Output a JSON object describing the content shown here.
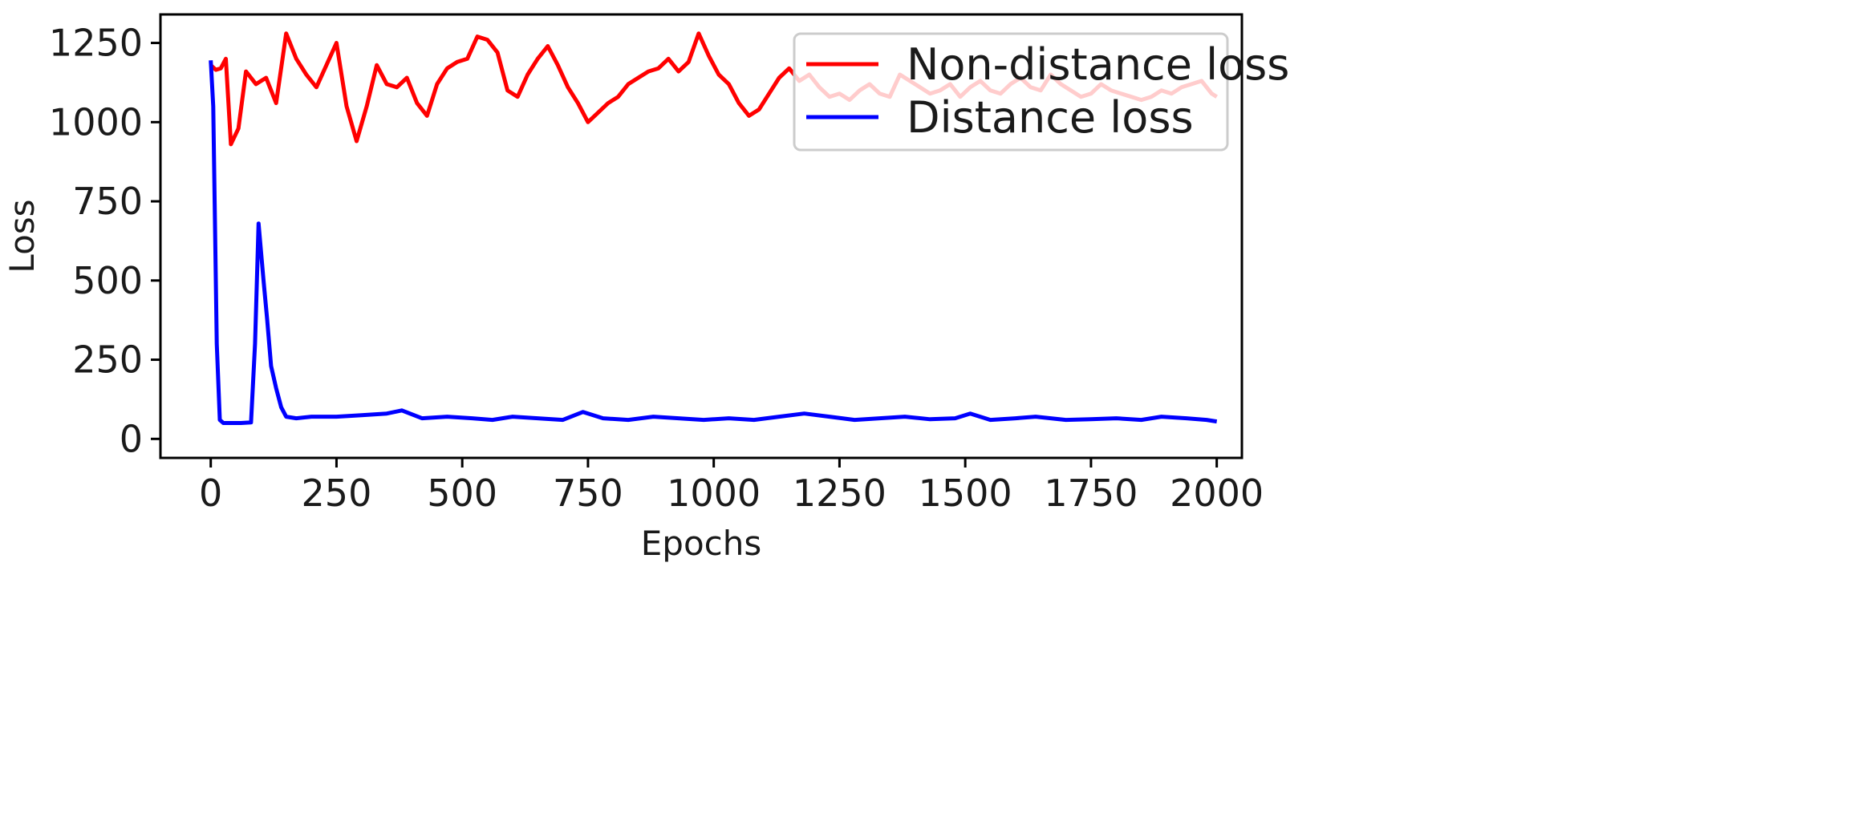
{
  "chart_data": {
    "type": "line",
    "title": "",
    "xlabel": "Epochs",
    "ylabel": "Loss",
    "xlim": [
      -100,
      2050
    ],
    "ylim": [
      -60,
      1340
    ],
    "xticks": [
      0,
      250,
      500,
      750,
      1000,
      1250,
      1500,
      1750,
      2000
    ],
    "xtick_labels": [
      "0",
      "250",
      "500",
      "750",
      "1000",
      "1250",
      "1500",
      "1750",
      "2000"
    ],
    "yticks": [
      0,
      250,
      500,
      750,
      1000,
      1250
    ],
    "ytick_labels": [
      "0",
      "250",
      "500",
      "750",
      "1000",
      "1250"
    ],
    "grid": false,
    "legend_position": "top-right",
    "series": [
      {
        "name": "Non-distance loss",
        "color": "#ff0000",
        "x": [
          0,
          10,
          20,
          30,
          40,
          55,
          70,
          90,
          110,
          130,
          150,
          170,
          190,
          210,
          230,
          250,
          270,
          290,
          310,
          330,
          350,
          370,
          390,
          410,
          430,
          450,
          470,
          490,
          510,
          530,
          550,
          570,
          590,
          610,
          630,
          650,
          670,
          690,
          710,
          730,
          750,
          770,
          790,
          810,
          830,
          850,
          870,
          890,
          910,
          930,
          950,
          970,
          990,
          1010,
          1030,
          1050,
          1070,
          1090,
          1110,
          1130,
          1150,
          1170,
          1190,
          1210,
          1230,
          1250,
          1270,
          1290,
          1310,
          1330,
          1350,
          1370,
          1390,
          1410,
          1430,
          1450,
          1470,
          1490,
          1510,
          1530,
          1550,
          1570,
          1590,
          1610,
          1630,
          1650,
          1670,
          1690,
          1710,
          1730,
          1750,
          1770,
          1790,
          1810,
          1830,
          1850,
          1870,
          1890,
          1910,
          1930,
          1950,
          1970,
          1990,
          2000
        ],
        "y": [
          1180,
          1165,
          1170,
          1200,
          930,
          980,
          1160,
          1120,
          1140,
          1060,
          1280,
          1200,
          1150,
          1110,
          1180,
          1250,
          1050,
          940,
          1050,
          1180,
          1120,
          1110,
          1140,
          1060,
          1020,
          1120,
          1170,
          1190,
          1200,
          1270,
          1260,
          1220,
          1100,
          1080,
          1150,
          1200,
          1240,
          1180,
          1110,
          1060,
          1000,
          1030,
          1060,
          1080,
          1120,
          1140,
          1160,
          1170,
          1200,
          1160,
          1190,
          1280,
          1210,
          1150,
          1120,
          1060,
          1020,
          1040,
          1090,
          1140,
          1170,
          1130,
          1150,
          1110,
          1080,
          1090,
          1070,
          1100,
          1120,
          1090,
          1080,
          1150,
          1130,
          1110,
          1090,
          1100,
          1120,
          1080,
          1110,
          1130,
          1100,
          1090,
          1120,
          1140,
          1110,
          1100,
          1150,
          1120,
          1100,
          1080,
          1090,
          1120,
          1100,
          1090,
          1080,
          1070,
          1080,
          1100,
          1090,
          1110,
          1120,
          1130,
          1090,
          1080
        ]
      },
      {
        "name": "Distance loss",
        "color": "#0000ff",
        "x": [
          0,
          5,
          12,
          18,
          25,
          40,
          60,
          80,
          88,
          95,
          100,
          105,
          112,
          120,
          130,
          140,
          150,
          170,
          200,
          250,
          300,
          350,
          380,
          420,
          470,
          520,
          560,
          600,
          650,
          700,
          740,
          780,
          830,
          880,
          930,
          980,
          1030,
          1080,
          1130,
          1180,
          1230,
          1280,
          1330,
          1380,
          1430,
          1480,
          1510,
          1550,
          1600,
          1640,
          1700,
          1750,
          1800,
          1850,
          1890,
          1940,
          1980,
          2000
        ],
        "y": [
          1195,
          1050,
          300,
          60,
          50,
          50,
          50,
          52,
          300,
          680,
          590,
          500,
          380,
          230,
          160,
          100,
          70,
          65,
          70,
          70,
          75,
          80,
          90,
          65,
          70,
          65,
          60,
          70,
          65,
          60,
          85,
          65,
          60,
          70,
          65,
          60,
          65,
          60,
          70,
          80,
          70,
          60,
          65,
          70,
          62,
          65,
          80,
          60,
          65,
          70,
          60,
          62,
          65,
          60,
          70,
          65,
          60,
          55
        ]
      }
    ]
  }
}
